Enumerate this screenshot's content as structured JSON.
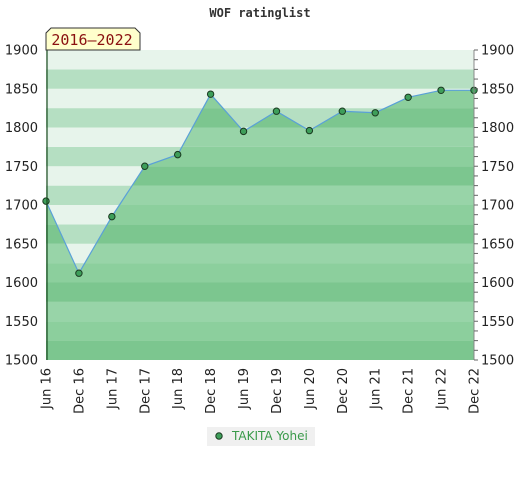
{
  "chart_data": {
    "type": "area",
    "title": "WOF ratinglist",
    "period_badge": "2016–2022",
    "xlabel": "",
    "ylabel": "",
    "ylim": [
      1500,
      1900
    ],
    "yticks": [
      1500,
      1550,
      1600,
      1650,
      1700,
      1750,
      1800,
      1850,
      1900
    ],
    "categories": [
      "Jun 16",
      "Dec 16",
      "Jun 17",
      "Dec 17",
      "Jun 18",
      "Dec 18",
      "Jun 19",
      "Dec 19",
      "Jun 20",
      "Dec 20",
      "Jun 21",
      "Dec 21",
      "Jun 22",
      "Dec 22"
    ],
    "series": [
      {
        "name": "TAKITA Yohei",
        "values": [
          1705,
          1612,
          1685,
          1750,
          1765,
          1843,
          1795,
          1821,
          1796,
          1821,
          1819,
          1839,
          1848,
          1848
        ]
      }
    ],
    "grid": true,
    "legend_position": "bottom-center",
    "colors": {
      "area_fill": "#7cc68f",
      "line": "#5aa0d8",
      "marker": "#3e9e5a",
      "band_dark": "#b5dfc2",
      "band_light": "#e7f4eb",
      "badge_bg": "#ffffcc"
    }
  }
}
